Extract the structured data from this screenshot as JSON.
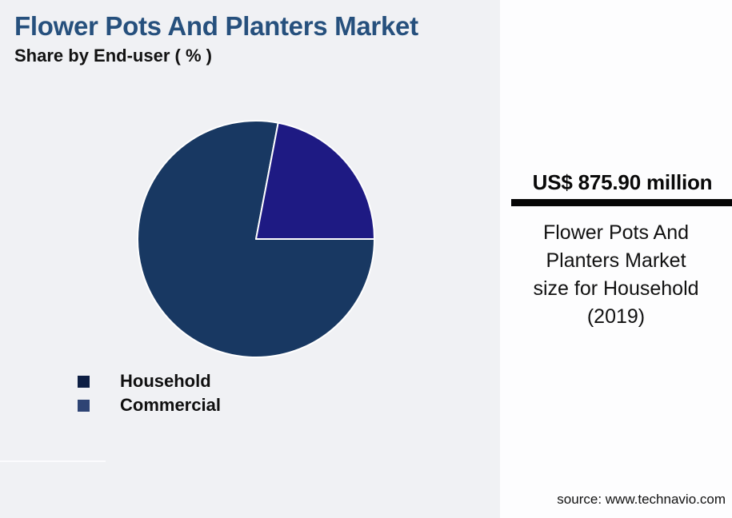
{
  "header": {
    "title": "Flower Pots And Planters Market",
    "subtitle": "Share by End-user ( % )"
  },
  "chart_data": {
    "type": "pie",
    "title": "Flower Pots And Planters Market",
    "subtitle": "Share by End-user ( % )",
    "start_angle_deg": 90,
    "clockwise": true,
    "slice_border_color": "#ffffff",
    "slices": [
      {
        "label": "Household",
        "value": 78,
        "color": "#183862"
      },
      {
        "label": "Commercial",
        "value": 22,
        "color": "#1e1a83"
      }
    ],
    "legend_position": "bottom-left",
    "labels_shown": false
  },
  "legend": {
    "items": [
      {
        "label": "Household",
        "color": "#0d1e43"
      },
      {
        "label": "Commercial",
        "color": "#2e4474"
      }
    ]
  },
  "sidebar": {
    "value": "US$ 875.90 million",
    "caption_lines": [
      "Flower Pots And",
      "Planters Market",
      "size for Household",
      "(2019)"
    ],
    "source": "source: www.technavio.com"
  },
  "colors": {
    "background": "#f0f1f4",
    "sidebar_background": "#fdfdfe",
    "title": "#26507d",
    "highlight_bar": "#060606"
  }
}
